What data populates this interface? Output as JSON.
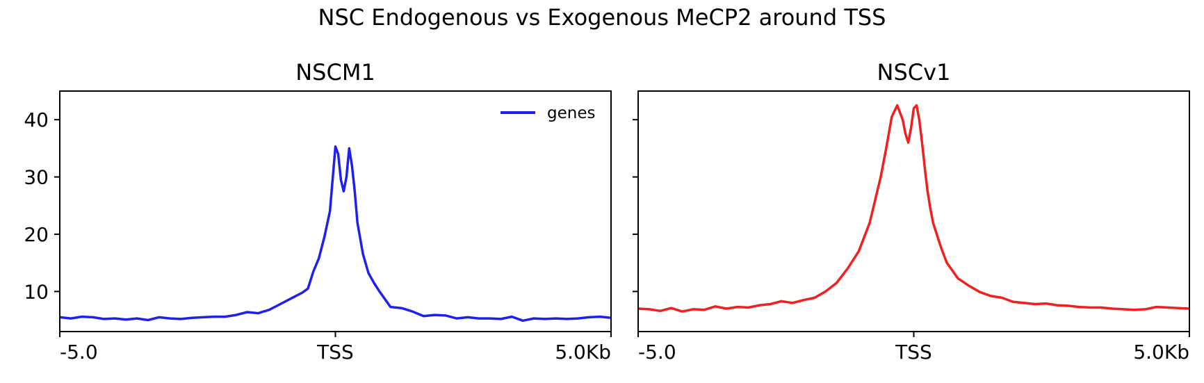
{
  "figure": {
    "suptitle": "NSC Endogenous vs Exogenous MeCP2 around TSS"
  },
  "chart_data": [
    {
      "type": "line",
      "title": "NSCM1",
      "xlabel": "",
      "ylabel": "",
      "xlim": [
        -5.0,
        5.0
      ],
      "ylim": [
        3,
        45
      ],
      "xticks": [
        {
          "value": -5.0,
          "label": "-5.0"
        },
        {
          "value": 0.0,
          "label": "TSS"
        },
        {
          "value": 5.0,
          "label": "5.0Kb"
        }
      ],
      "yticks": [
        {
          "value": 10,
          "label": "10"
        },
        {
          "value": 20,
          "label": "20"
        },
        {
          "value": 30,
          "label": "30"
        },
        {
          "value": 40,
          "label": "40"
        }
      ],
      "grid": false,
      "legend": {
        "position": "top-right",
        "entries": [
          "genes"
        ]
      },
      "series": [
        {
          "name": "genes",
          "color": "#1f1ff0",
          "x": [
            -5.0,
            -4.8,
            -4.6,
            -4.4,
            -4.2,
            -4.0,
            -3.8,
            -3.6,
            -3.4,
            -3.2,
            -3.0,
            -2.8,
            -2.6,
            -2.4,
            -2.2,
            -2.0,
            -1.8,
            -1.6,
            -1.4,
            -1.2,
            -1.0,
            -0.8,
            -0.6,
            -0.5,
            -0.4,
            -0.3,
            -0.2,
            -0.1,
            0.0,
            0.05,
            0.1,
            0.15,
            0.2,
            0.25,
            0.3,
            0.35,
            0.4,
            0.5,
            0.6,
            0.7,
            0.8,
            1.0,
            1.2,
            1.4,
            1.6,
            1.8,
            2.0,
            2.2,
            2.4,
            2.6,
            2.8,
            3.0,
            3.2,
            3.4,
            3.6,
            3.8,
            4.0,
            4.2,
            4.4,
            4.6,
            4.8,
            5.0
          ],
          "y": [
            5.5,
            5.3,
            5.6,
            5.5,
            5.2,
            5.3,
            5.1,
            5.3,
            5.0,
            5.5,
            5.3,
            5.2,
            5.4,
            5.5,
            5.6,
            5.6,
            5.9,
            6.4,
            6.2,
            6.8,
            7.8,
            8.8,
            9.8,
            10.5,
            13.5,
            15.8,
            19.5,
            24.0,
            35.3,
            34.0,
            29.5,
            27.5,
            30.0,
            35.0,
            32.0,
            27.5,
            22.0,
            16.5,
            13.2,
            11.5,
            10.0,
            7.3,
            7.1,
            6.5,
            5.7,
            5.9,
            5.8,
            5.3,
            5.5,
            5.3,
            5.3,
            5.2,
            5.6,
            4.9,
            5.3,
            5.2,
            5.3,
            5.2,
            5.3,
            5.5,
            5.6,
            5.4
          ]
        }
      ]
    },
    {
      "type": "line",
      "title": "NSCv1",
      "xlabel": "",
      "ylabel": "",
      "xlim": [
        -5.0,
        5.0
      ],
      "ylim": [
        3,
        45
      ],
      "xticks": [
        {
          "value": -5.0,
          "label": "-5.0"
        },
        {
          "value": 0.0,
          "label": "TSS"
        },
        {
          "value": 5.0,
          "label": "5.0Kb"
        }
      ],
      "yticks": [
        {
          "value": 10,
          "label": ""
        },
        {
          "value": 20,
          "label": ""
        },
        {
          "value": 30,
          "label": ""
        },
        {
          "value": 40,
          "label": ""
        }
      ],
      "grid": false,
      "series": [
        {
          "color": "#f21f1f",
          "x": [
            -5.0,
            -4.8,
            -4.6,
            -4.4,
            -4.2,
            -4.0,
            -3.8,
            -3.6,
            -3.4,
            -3.2,
            -3.0,
            -2.8,
            -2.6,
            -2.4,
            -2.2,
            -2.0,
            -1.8,
            -1.6,
            -1.4,
            -1.2,
            -1.0,
            -0.8,
            -0.6,
            -0.5,
            -0.4,
            -0.3,
            -0.2,
            -0.15,
            -0.1,
            -0.05,
            0.0,
            0.05,
            0.1,
            0.15,
            0.2,
            0.25,
            0.3,
            0.35,
            0.4,
            0.5,
            0.6,
            0.8,
            1.0,
            1.2,
            1.4,
            1.6,
            1.8,
            2.0,
            2.2,
            2.4,
            2.6,
            2.8,
            3.0,
            3.2,
            3.4,
            3.6,
            3.8,
            4.0,
            4.2,
            4.4,
            4.6,
            4.8,
            5.0
          ],
          "y": [
            7.0,
            6.9,
            6.6,
            7.1,
            6.5,
            6.9,
            6.8,
            7.4,
            7.0,
            7.3,
            7.2,
            7.6,
            7.8,
            8.3,
            8.0,
            8.5,
            8.9,
            10.0,
            11.5,
            14.0,
            17.0,
            22.0,
            30.0,
            35.0,
            40.5,
            42.5,
            40.0,
            37.5,
            36.0,
            38.5,
            42.0,
            42.5,
            40.0,
            36.0,
            31.5,
            27.5,
            24.5,
            22.0,
            20.5,
            17.5,
            15.0,
            12.3,
            11.0,
            9.9,
            9.2,
            8.9,
            8.2,
            8.0,
            7.8,
            7.9,
            7.6,
            7.5,
            7.3,
            7.2,
            7.2,
            7.0,
            6.9,
            6.8,
            6.9,
            7.3,
            7.2,
            7.1,
            7.0
          ]
        }
      ]
    }
  ]
}
